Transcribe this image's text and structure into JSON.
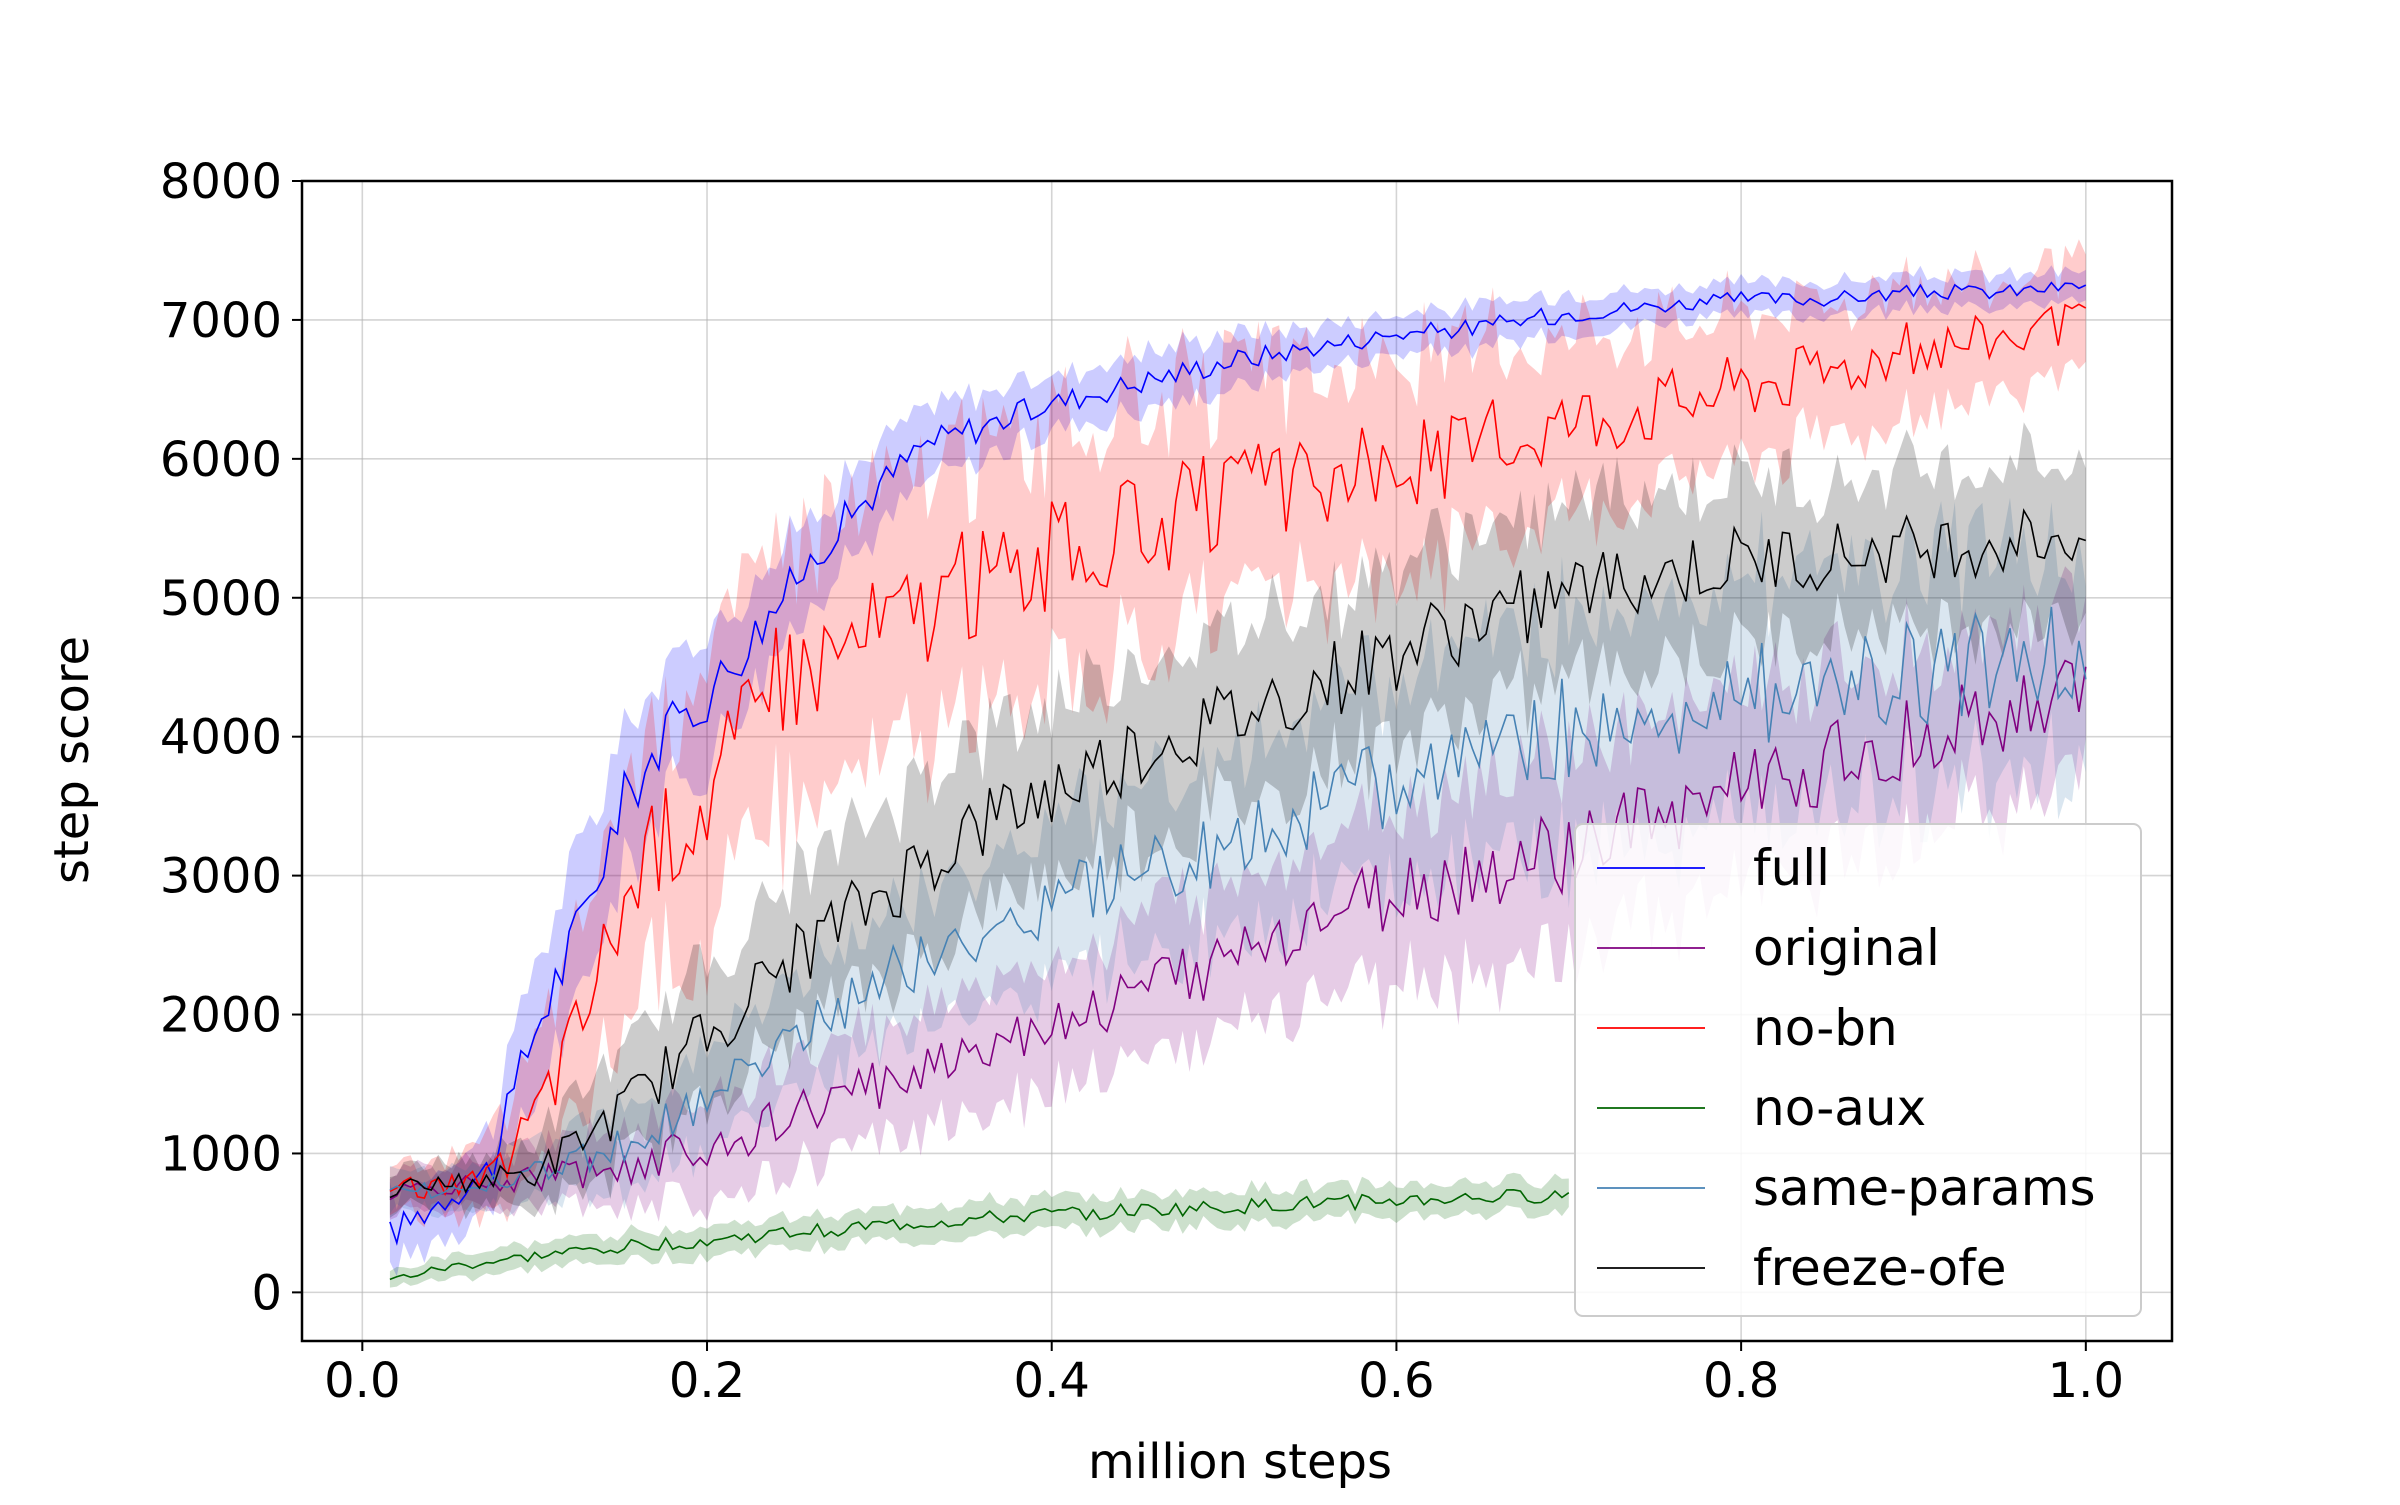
{
  "chart_data": {
    "type": "line",
    "title": "",
    "xlabel": "million steps",
    "ylabel": "step score",
    "xlim": [
      -0.035,
      1.05
    ],
    "ylim": [
      -350,
      8000
    ],
    "xticks": [
      0.0,
      0.2,
      0.4,
      0.6,
      0.8,
      1.0
    ],
    "xtick_labels": [
      "0.0",
      "0.2",
      "0.4",
      "0.6",
      "0.8",
      "1.0"
    ],
    "yticks": [
      0,
      1000,
      2000,
      3000,
      4000,
      5000,
      6000,
      7000,
      8000
    ],
    "ytick_labels": [
      "0",
      "1000",
      "2000",
      "3000",
      "4000",
      "5000",
      "6000",
      "7000",
      "8000"
    ],
    "grid": true,
    "legend_position": "lower-right",
    "note": "Each series is a mean curve (noisy thin line) with a shaded band; values estimated from the plot.",
    "series": [
      {
        "name": "full",
        "color": "#0000ff",
        "x": [
          0.016,
          0.05,
          0.075,
          0.1,
          0.125,
          0.15,
          0.175,
          0.2,
          0.225,
          0.25,
          0.275,
          0.3,
          0.325,
          0.35,
          0.4,
          0.45,
          0.5,
          0.55,
          0.6,
          0.65,
          0.7,
          0.75,
          0.8,
          0.85,
          0.9,
          0.95,
          1.0
        ],
        "y": [
          420,
          700,
          900,
          1900,
          2600,
          3500,
          4000,
          4300,
          4700,
          5100,
          5500,
          5800,
          6100,
          6200,
          6400,
          6550,
          6700,
          6800,
          6900,
          6950,
          7050,
          7100,
          7150,
          7150,
          7200,
          7200,
          7250
        ],
        "band": [
          250,
          250,
          300,
          500,
          500,
          500,
          450,
          450,
          400,
          350,
          300,
          300,
          250,
          250,
          200,
          200,
          200,
          150,
          150,
          150,
          150,
          120,
          120,
          120,
          120,
          120,
          100
        ]
      },
      {
        "name": "original",
        "color": "#800080",
        "x": [
          0.016,
          0.05,
          0.1,
          0.15,
          0.2,
          0.25,
          0.3,
          0.35,
          0.4,
          0.45,
          0.5,
          0.55,
          0.6,
          0.65,
          0.7,
          0.75,
          0.8,
          0.85,
          0.9,
          0.95,
          1.0
        ],
        "y": [
          720,
          760,
          820,
          900,
          1050,
          1250,
          1500,
          1750,
          1950,
          2150,
          2400,
          2650,
          2850,
          3000,
          3150,
          3400,
          3650,
          3800,
          4000,
          4150,
          4400
        ],
        "band": [
          150,
          150,
          200,
          300,
          350,
          400,
          400,
          450,
          450,
          500,
          550,
          600,
          650,
          700,
          700,
          700,
          700,
          700,
          650,
          650,
          600
        ]
      },
      {
        "name": "no-bn",
        "color": "#ff0000",
        "x": [
          0.016,
          0.05,
          0.075,
          0.1,
          0.125,
          0.15,
          0.175,
          0.2,
          0.225,
          0.25,
          0.3,
          0.35,
          0.4,
          0.45,
          0.5,
          0.55,
          0.6,
          0.65,
          0.7,
          0.75,
          0.8,
          0.85,
          0.9,
          0.95,
          1.0
        ],
        "y": [
          750,
          760,
          800,
          1300,
          1900,
          2800,
          3300,
          3600,
          4100,
          4500,
          4800,
          5100,
          5300,
          5500,
          5700,
          5800,
          5950,
          6100,
          6300,
          6400,
          6550,
          6650,
          6800,
          6900,
          6950
        ],
        "band": [
          150,
          200,
          300,
          500,
          700,
          800,
          900,
          1000,
          1000,
          1000,
          950,
          950,
          900,
          900,
          850,
          800,
          750,
          700,
          650,
          600,
          550,
          500,
          450,
          400,
          400
        ]
      },
      {
        "name": "no-aux",
        "color": "#006400",
        "x": [
          0.016,
          0.05,
          0.1,
          0.15,
          0.2,
          0.25,
          0.3,
          0.35,
          0.4,
          0.45,
          0.5,
          0.55,
          0.6,
          0.65,
          0.7
        ],
        "y": [
          90,
          180,
          260,
          330,
          370,
          430,
          480,
          520,
          560,
          590,
          610,
          640,
          660,
          680,
          700
        ],
        "band": [
          60,
          80,
          90,
          100,
          110,
          110,
          120,
          120,
          120,
          120,
          120,
          120,
          120,
          120,
          120
        ]
      },
      {
        "name": "same-params",
        "color": "#4682b4",
        "x": [
          0.016,
          0.05,
          0.1,
          0.15,
          0.2,
          0.25,
          0.3,
          0.35,
          0.4,
          0.45,
          0.5,
          0.55,
          0.6,
          0.65,
          0.7,
          0.75,
          0.8,
          0.85,
          0.9,
          0.95,
          1.0
        ],
        "y": [
          700,
          750,
          850,
          1050,
          1400,
          1850,
          2250,
          2550,
          2800,
          3000,
          3200,
          3450,
          3700,
          3900,
          4050,
          4200,
          4300,
          4400,
          4450,
          4550,
          4600
        ],
        "band": [
          150,
          150,
          200,
          300,
          350,
          400,
          450,
          500,
          550,
          600,
          650,
          700,
          750,
          800,
          850,
          850,
          850,
          850,
          850,
          800,
          800
        ]
      },
      {
        "name": "freeze-ofe",
        "color": "#000000",
        "x": [
          0.016,
          0.05,
          0.1,
          0.15,
          0.2,
          0.25,
          0.3,
          0.35,
          0.4,
          0.45,
          0.5,
          0.55,
          0.6,
          0.65,
          0.7,
          0.75,
          0.8,
          0.85,
          0.9,
          0.95,
          1.0
        ],
        "y": [
          750,
          780,
          850,
          1300,
          1850,
          2400,
          2850,
          3300,
          3600,
          3900,
          4100,
          4350,
          4600,
          4850,
          5050,
          5150,
          5250,
          5300,
          5350,
          5400,
          5450
        ],
        "band": [
          150,
          150,
          250,
          400,
          500,
          550,
          600,
          650,
          650,
          650,
          650,
          650,
          650,
          650,
          600,
          600,
          600,
          550,
          550,
          550,
          550
        ]
      }
    ]
  }
}
